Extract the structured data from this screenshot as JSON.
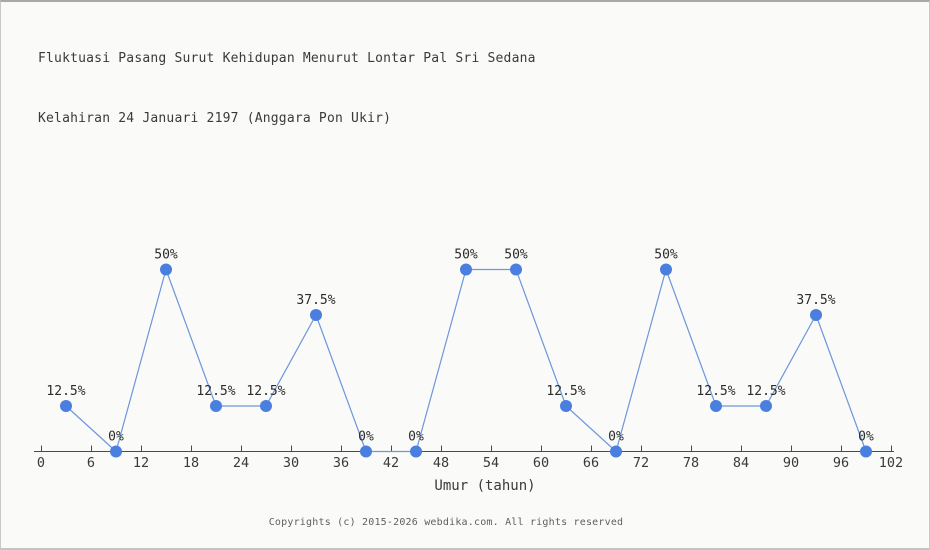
{
  "title": {
    "line1": "Fluktuasi Pasang Surut Kehidupan Menurut Lontar Pal Sri Sedana",
    "line2": "Kelahiran 24 Januari 2197 (Anggara Pon Ukir)"
  },
  "footer": {
    "copyright": "Copyrights (c) 2015-2026 webdika.com. All rights reserved"
  },
  "chart_data": {
    "type": "line",
    "title": "Fluktuasi Pasang Surut Kehidupan Menurut Lontar Pal Sri Sedana Kelahiran 24 Januari 2197 (Anggara Pon Ukir)",
    "xlabel": "Umur (tahun)",
    "ylabel": "",
    "unit": "%",
    "x": [
      3,
      9,
      15,
      21,
      27,
      33,
      39,
      45,
      51,
      57,
      63,
      69,
      75,
      81,
      87,
      93,
      99
    ],
    "values": [
      12.5,
      0,
      50,
      12.5,
      12.5,
      37.5,
      0,
      0,
      50,
      50,
      12.5,
      0,
      50,
      12.5,
      12.5,
      37.5,
      0
    ],
    "point_labels": [
      "12.5%",
      "0%",
      "50%",
      "12.5%",
      "12.5%",
      "37.5%",
      "0%",
      "0%",
      "50%",
      "50%",
      "12.5%",
      "0%",
      "50%",
      "12.5%",
      "12.5%",
      "37.5%",
      "0%"
    ],
    "x_ticks": [
      0,
      6,
      12,
      18,
      24,
      30,
      36,
      42,
      48,
      54,
      60,
      66,
      72,
      78,
      84,
      90,
      96,
      102
    ],
    "xlim": [
      0,
      102
    ],
    "ylim": [
      0,
      100
    ],
    "grid": false,
    "legend": "none",
    "y_axis_drawn": false,
    "colors": {
      "marker": "#4a7fe0",
      "line": "#6d97d8",
      "axis": "#4a4a4a",
      "tick_text": "#3a3a3a",
      "label_text": "#2b2b2b"
    }
  }
}
